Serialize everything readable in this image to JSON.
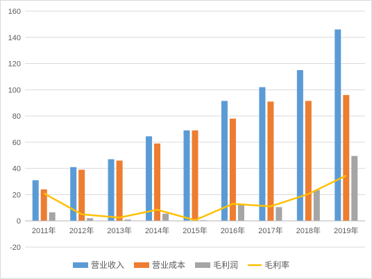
{
  "chart_data": {
    "type": "bar",
    "categories": [
      "2011年",
      "2012年",
      "2013年",
      "2014年",
      "2015年",
      "2016年",
      "2017年",
      "2018年",
      "2019年"
    ],
    "ylim": [
      -20,
      160
    ],
    "yticks": [
      -20,
      0,
      20,
      40,
      60,
      80,
      100,
      120,
      140,
      160
    ],
    "grid": true,
    "legend_position": "bottom",
    "series": [
      {
        "name": "营业收入",
        "type": "bar",
        "color": "#5B9BD5",
        "values": [
          31,
          41,
          47,
          64.5,
          69,
          91.5,
          102,
          115,
          146
        ]
      },
      {
        "name": "营业成本",
        "type": "bar",
        "color": "#ED7D31",
        "values": [
          24,
          39,
          46,
          59,
          69,
          78,
          91,
          91.5,
          96
        ]
      },
      {
        "name": "毛利润",
        "type": "bar",
        "color": "#A5A5A5",
        "values": [
          6.5,
          2,
          1,
          5.5,
          0.5,
          13,
          10.5,
          23.5,
          49.5
        ]
      },
      {
        "name": "毛利率",
        "type": "line",
        "color": "#FFC000",
        "values": [
          21,
          5,
          2.5,
          8.5,
          0.5,
          13,
          11,
          20.5,
          34.5
        ]
      }
    ]
  }
}
